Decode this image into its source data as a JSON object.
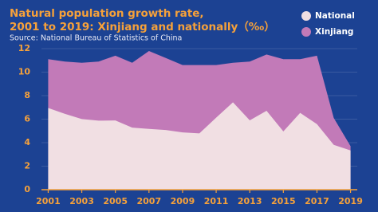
{
  "chart_data": {
    "type": "area",
    "title": [
      "Natural population growth rate,",
      "2001 to 2019: Xinjiang and nationally（‰）"
    ],
    "subtitle": "Source: National Bureau of Statistics of China",
    "x": [
      2001,
      2002,
      2003,
      2004,
      2005,
      2006,
      2007,
      2008,
      2009,
      2010,
      2011,
      2012,
      2013,
      2014,
      2015,
      2016,
      2017,
      2018,
      2019
    ],
    "series": [
      {
        "name": "Xinjiang",
        "color": "#c27ab8",
        "values": [
          11.1,
          10.9,
          10.8,
          10.9,
          11.4,
          10.8,
          11.8,
          11.2,
          10.6,
          10.6,
          10.6,
          10.8,
          10.9,
          11.5,
          11.1,
          11.1,
          11.4,
          6.1,
          3.7
        ]
      },
      {
        "name": "National",
        "color": "#f1dfe3",
        "values": [
          6.95,
          6.45,
          6.01,
          5.87,
          5.89,
          5.28,
          5.17,
          5.08,
          4.87,
          4.79,
          6.13,
          7.43,
          5.9,
          6.71,
          4.96,
          6.53,
          5.58,
          3.81,
          3.34
        ]
      }
    ],
    "legend_order": [
      1,
      0
    ],
    "xlim": [
      2000.6,
      2019.4
    ],
    "xticks": [
      2001,
      2003,
      2005,
      2007,
      2009,
      2011,
      2013,
      2015,
      2017,
      2019
    ],
    "ylim": [
      0,
      12
    ],
    "yticks": [
      0,
      2,
      4,
      6,
      8,
      10,
      12
    ],
    "grid": true
  }
}
